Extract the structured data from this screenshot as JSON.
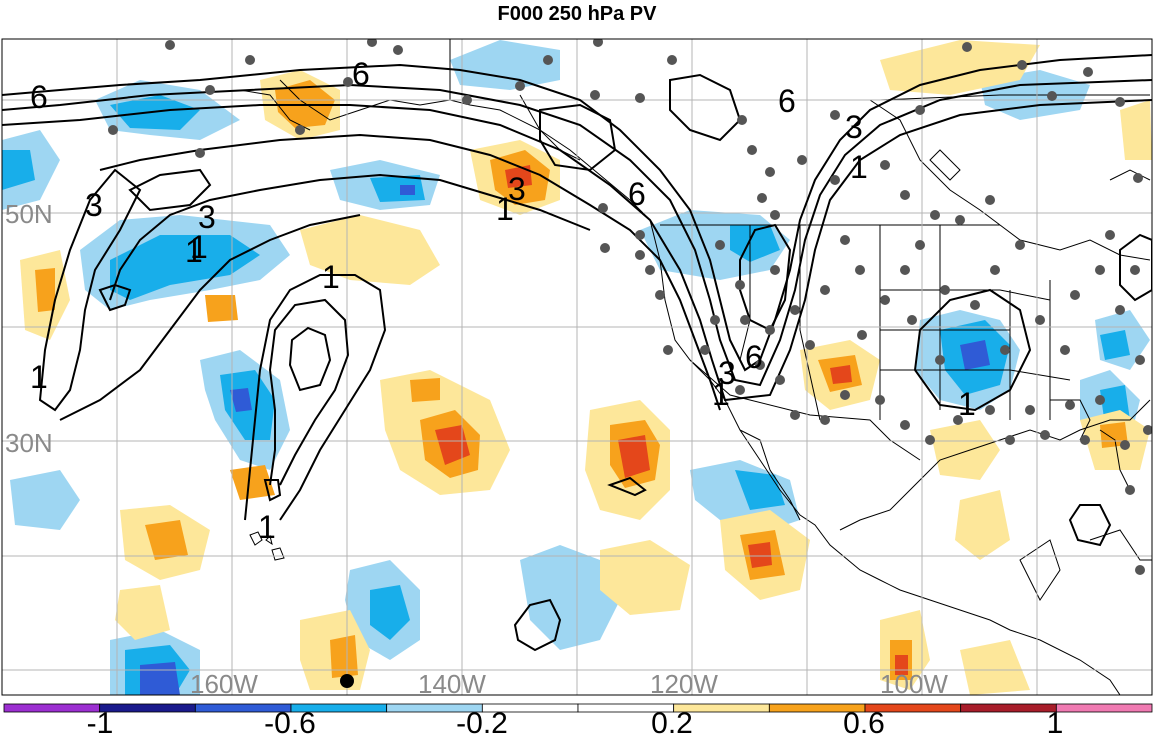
{
  "title": "F000 250 hPa PV",
  "axes": {
    "lat_labels": [
      "50N",
      "30N"
    ],
    "lon_labels": [
      "160W",
      "140W",
      "120W",
      "100W"
    ]
  },
  "contours": {
    "labels": [
      "6",
      "6",
      "6",
      "6",
      "3",
      "3",
      "3",
      "3",
      "1",
      "1",
      "1",
      "1",
      "1",
      "1",
      "1",
      "1",
      "6",
      "3",
      "1"
    ]
  },
  "colorbar": {
    "tick_labels": [
      "-1",
      "-0.6",
      "-0.2",
      "0.2",
      "0.6",
      "1"
    ],
    "colors": [
      "#9c2fd1",
      "#1a1a8c",
      "#2f5bd6",
      "#18aeea",
      "#9ed6f2",
      "#ffffff",
      "#ffffff",
      "#fde79a",
      "#f7a21c",
      "#e4471b",
      "#a81d2a",
      "#f07ab2"
    ]
  },
  "colors": {
    "positive_light": "#fde79a",
    "positive_mid": "#f7a21c",
    "positive_high": "#e4471b",
    "negative_light": "#9ed6f2",
    "negative_mid": "#18aeea",
    "negative_high": "#2f5bd6",
    "station_dot": "#555555",
    "grid": "#b4b4b4"
  }
}
